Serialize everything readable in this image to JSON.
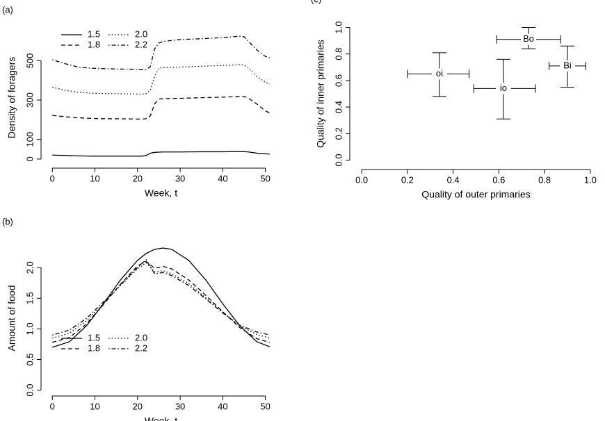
{
  "chart_data": [
    {
      "type": "line",
      "panel": "(a)",
      "xlabel": "Week, t",
      "ylabel": "Density of foragers",
      "xlim": [
        -2,
        53
      ],
      "ylim": [
        -25,
        650
      ],
      "xticks": [
        0,
        10,
        20,
        30,
        40,
        50
      ],
      "yticks": [
        0,
        100,
        300,
        500
      ],
      "legend": "top-left",
      "x": [
        0,
        3,
        6,
        9,
        12,
        15,
        18,
        21,
        22,
        23,
        24,
        25,
        26,
        30,
        35,
        40,
        44,
        45,
        46,
        48,
        50,
        51
      ],
      "series": [
        {
          "name": "1.5",
          "color": "#000000",
          "dash": "solid",
          "values": [
            20,
            18,
            16,
            15,
            15,
            15,
            15,
            15,
            18,
            30,
            34,
            35,
            36,
            36,
            37,
            37,
            38,
            38,
            36,
            30,
            27,
            25
          ]
        },
        {
          "name": "1.8",
          "color": "#000000",
          "dash": "dashed",
          "values": [
            222,
            215,
            210,
            207,
            205,
            205,
            204,
            203,
            205,
            220,
            280,
            305,
            307,
            309,
            312,
            315,
            318,
            318,
            310,
            280,
            245,
            235
          ]
        },
        {
          "name": "2.0",
          "color": "#000000",
          "dash": "dotted",
          "values": [
            365,
            350,
            340,
            335,
            333,
            332,
            331,
            330,
            332,
            350,
            420,
            462,
            465,
            468,
            472,
            476,
            480,
            478,
            465,
            420,
            390,
            380
          ]
        },
        {
          "name": "2.2",
          "color": "#000000",
          "dash": "dashdot",
          "values": [
            505,
            485,
            468,
            462,
            460,
            458,
            457,
            455,
            455,
            470,
            560,
            590,
            598,
            608,
            612,
            618,
            625,
            622,
            600,
            555,
            522,
            515
          ]
        }
      ]
    },
    {
      "type": "line",
      "panel": "(b)",
      "xlabel": "Week, t",
      "ylabel": "Amount of food",
      "xlim": [
        -2,
        53
      ],
      "ylim": [
        -0.05,
        2.4
      ],
      "xticks": [
        0,
        10,
        20,
        30,
        40,
        50
      ],
      "yticks": [
        {
          "value": 0,
          "label": "0.0"
        },
        0.5,
        {
          "value": 1,
          "label": "1.0"
        },
        1.5,
        {
          "value": 2,
          "label": "2.0"
        }
      ],
      "legend": "bottom-left",
      "x": [
        0,
        4,
        8,
        12,
        16,
        20,
        22,
        24,
        26,
        28,
        32,
        36,
        40,
        44,
        48,
        51
      ],
      "series": [
        {
          "name": "1.5",
          "color": "#000000",
          "dash": "solid",
          "values": [
            0.7,
            0.79,
            1.05,
            1.41,
            1.8,
            2.12,
            2.23,
            2.3,
            2.32,
            2.3,
            2.12,
            1.8,
            1.41,
            1.05,
            0.79,
            0.71
          ]
        },
        {
          "name": "1.8",
          "color": "#000000",
          "dash": "dashed",
          "values": [
            0.78,
            0.86,
            1.08,
            1.4,
            1.73,
            2.03,
            2.1,
            1.99,
            2.02,
            1.98,
            1.8,
            1.55,
            1.28,
            1.02,
            0.84,
            0.78
          ]
        },
        {
          "name": "2.0",
          "color": "#000000",
          "dash": "dotted",
          "values": [
            0.85,
            0.93,
            1.13,
            1.42,
            1.71,
            1.98,
            2.08,
            1.93,
            1.95,
            1.9,
            1.74,
            1.51,
            1.27,
            1.05,
            0.91,
            0.85
          ]
        },
        {
          "name": "2.2",
          "color": "#000000",
          "dash": "dashdot",
          "values": [
            0.9,
            0.98,
            1.17,
            1.44,
            1.72,
            2.0,
            2.13,
            1.9,
            1.92,
            1.87,
            1.71,
            1.49,
            1.26,
            1.06,
            0.95,
            0.9
          ]
        }
      ]
    },
    {
      "type": "scatter",
      "panel": "(c)",
      "xlabel": "Quality of outer primaries",
      "ylabel": "Quality of inner primaries",
      "xlim": [
        -0.04,
        1.04
      ],
      "ylim": [
        -0.05,
        1.05
      ],
      "xticks": [
        {
          "value": 0,
          "label": "0.0"
        },
        0.2,
        0.4,
        0.6,
        0.8,
        {
          "value": 1,
          "label": "1.0"
        }
      ],
      "yticks": [
        {
          "value": 0,
          "label": "0.0"
        },
        0.2,
        0.4,
        0.6,
        0.8,
        {
          "value": 1,
          "label": "1.0"
        }
      ],
      "color": "#000000",
      "labels": [
        "oi",
        "io",
        "Bo",
        "Bi"
      ],
      "x": [
        0.34,
        0.62,
        0.73,
        0.9
      ],
      "y": [
        0.65,
        0.54,
        0.91,
        0.71
      ],
      "xlow": [
        0.2,
        0.49,
        0.59,
        0.82
      ],
      "xhigh": [
        0.47,
        0.76,
        0.87,
        0.98
      ],
      "ylow": [
        0.48,
        0.31,
        0.84,
        0.55
      ],
      "yhigh": [
        0.81,
        0.76,
        1.0,
        0.86
      ]
    }
  ]
}
